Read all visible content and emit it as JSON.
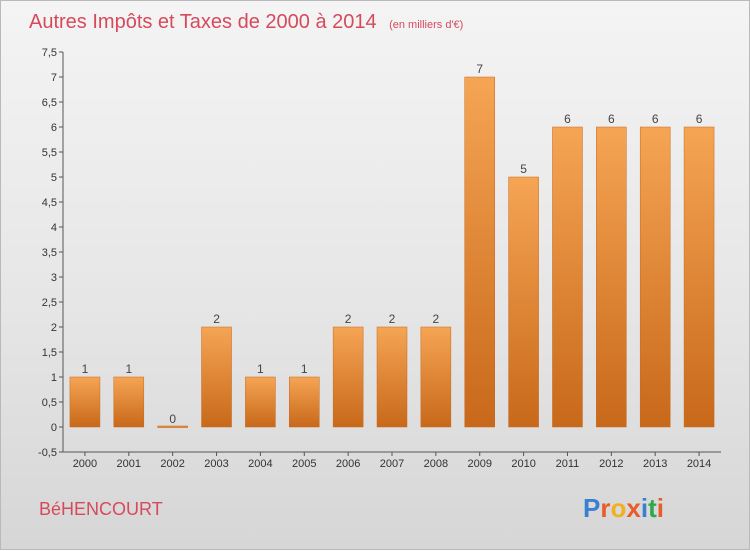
{
  "page": {
    "commune": "BéHENCOURT",
    "brand": "Proxiti"
  },
  "colors": {
    "title": "#d64a5c",
    "bar_top": "#f5a554",
    "bar_bottom": "#c8681a",
    "brand_letters": [
      "#3b7fd0",
      "#e85c2a",
      "#f2b01e",
      "#e85c2a",
      "#3b7fd0",
      "#2ea84a",
      "#e85c2a"
    ]
  },
  "chart_data": {
    "type": "bar",
    "title": "Autres Impôts et Taxes de 2000 à 2014",
    "subtitle": "(en milliers d'€)",
    "categories": [
      "2000",
      "2001",
      "2002",
      "2003",
      "2004",
      "2005",
      "2006",
      "2007",
      "2008",
      "2009",
      "2010",
      "2011",
      "2012",
      "2013",
      "2014"
    ],
    "values": [
      1,
      1,
      0,
      2,
      1,
      1,
      2,
      2,
      2,
      7,
      5,
      6,
      6,
      6,
      6
    ],
    "value_labels": [
      "1",
      "1",
      "0",
      "2",
      "1",
      "1",
      "2",
      "2",
      "2",
      "7",
      "5",
      "6",
      "6",
      "6",
      "6"
    ],
    "ylim": [
      -0.5,
      7.5
    ],
    "yticks": [
      "-0,5",
      "0",
      "0,5",
      "1",
      "1,5",
      "2",
      "2,5",
      "3",
      "3,5",
      "4",
      "4,5",
      "5",
      "5,5",
      "6",
      "6,5",
      "7",
      "7,5"
    ],
    "ytick_values": [
      -0.5,
      0,
      0.5,
      1,
      1.5,
      2,
      2.5,
      3,
      3.5,
      4,
      4.5,
      5,
      5.5,
      6,
      6.5,
      7,
      7.5
    ],
    "xlabel": "",
    "ylabel": "",
    "grid": false,
    "legend": "none"
  }
}
